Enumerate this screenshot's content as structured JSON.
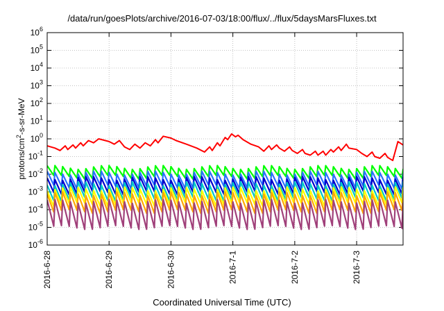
{
  "chart_data": {
    "type": "line",
    "title": "/data/run/goesPlots/archive/2016-07-03/18:00/flux/../flux/5daysMarsFluxes.txt",
    "xlabel": "Coordinated Universal Time (UTC)",
    "ylabel_parts": [
      "protons/cm",
      "2",
      "-s-sr-MeV"
    ],
    "y_scale": "log",
    "ylim": [
      1e-06,
      1000000.0
    ],
    "y_ticks": [
      {
        "base": "10",
        "exp": "6"
      },
      {
        "base": "10",
        "exp": "5"
      },
      {
        "base": "10",
        "exp": "4"
      },
      {
        "base": "10",
        "exp": "3"
      },
      {
        "base": "10",
        "exp": "2"
      },
      {
        "base": "10",
        "exp": "1"
      },
      {
        "base": "10",
        "exp": "0"
      },
      {
        "base": "10",
        "exp": "-1"
      },
      {
        "base": "10",
        "exp": "-2"
      },
      {
        "base": "10",
        "exp": "-3"
      },
      {
        "base": "10",
        "exp": "-4"
      },
      {
        "base": "10",
        "exp": "-5"
      },
      {
        "base": "10",
        "exp": "-6"
      }
    ],
    "x_ticks": [
      "2016-6-28",
      "2016-6-29",
      "2016-6-30",
      "2016-7-1",
      "2016-7-2",
      "2016-7-3"
    ],
    "xlim": [
      "2016-06-28",
      "2016-07-03 18:00"
    ],
    "grid": true,
    "series": [
      {
        "color": "#ff0000",
        "points": [
          [
            "2016-06-28 00:00",
            0.4
          ],
          [
            "2016-06-28 03:00",
            0.3
          ],
          [
            "2016-06-28 05:00",
            0.22
          ],
          [
            "2016-06-28 07:00",
            0.4
          ],
          [
            "2016-06-28 08:00",
            0.25
          ],
          [
            "2016-06-28 10:00",
            0.45
          ],
          [
            "2016-06-28 11:00",
            0.3
          ],
          [
            "2016-06-28 13:00",
            0.6
          ],
          [
            "2016-06-28 14:00",
            0.4
          ],
          [
            "2016-06-28 16:00",
            0.8
          ],
          [
            "2016-06-28 18:00",
            0.6
          ],
          [
            "2016-06-28 20:00",
            1.0
          ],
          [
            "2016-06-29 00:00",
            0.7
          ],
          [
            "2016-06-29 02:00",
            0.5
          ],
          [
            "2016-06-29 04:00",
            0.8
          ],
          [
            "2016-06-29 06:00",
            0.35
          ],
          [
            "2016-06-29 08:00",
            0.25
          ],
          [
            "2016-06-29 10:00",
            0.5
          ],
          [
            "2016-06-29 12:00",
            0.3
          ],
          [
            "2016-06-29 14:00",
            0.6
          ],
          [
            "2016-06-29 16:00",
            0.4
          ],
          [
            "2016-06-29 18:00",
            0.9
          ],
          [
            "2016-06-29 19:00",
            0.6
          ],
          [
            "2016-06-29 21:00",
            1.4
          ],
          [
            "2016-06-30 00:00",
            1.1
          ],
          [
            "2016-06-30 02:00",
            0.8
          ],
          [
            "2016-06-30 06:00",
            0.5
          ],
          [
            "2016-06-30 10:00",
            0.3
          ],
          [
            "2016-06-30 13:00",
            0.18
          ],
          [
            "2016-06-30 15:00",
            0.35
          ],
          [
            "2016-06-30 16:00",
            0.22
          ],
          [
            "2016-06-30 18:00",
            0.6
          ],
          [
            "2016-06-30 19:00",
            0.4
          ],
          [
            "2016-06-30 21:00",
            1.2
          ],
          [
            "2016-06-30 22:00",
            0.9
          ],
          [
            "2016-06-30 23:30",
            1.9
          ],
          [
            "2016-07-01 01:00",
            1.3
          ],
          [
            "2016-07-01 02:00",
            1.6
          ],
          [
            "2016-07-01 04:00",
            0.9
          ],
          [
            "2016-07-01 07:00",
            0.5
          ],
          [
            "2016-07-01 10:00",
            0.35
          ],
          [
            "2016-07-01 12:00",
            0.2
          ],
          [
            "2016-07-01 14:00",
            0.4
          ],
          [
            "2016-07-01 15:00",
            0.25
          ],
          [
            "2016-07-01 17:00",
            0.45
          ],
          [
            "2016-07-01 18:00",
            0.3
          ],
          [
            "2016-07-01 20:00",
            0.2
          ],
          [
            "2016-07-01 22:00",
            0.35
          ],
          [
            "2016-07-01 23:00",
            0.22
          ],
          [
            "2016-07-02 01:00",
            0.15
          ],
          [
            "2016-07-02 03:00",
            0.25
          ],
          [
            "2016-07-02 04:00",
            0.15
          ],
          [
            "2016-07-02 06:00",
            0.12
          ],
          [
            "2016-07-02 08:00",
            0.2
          ],
          [
            "2016-07-02 09:00",
            0.12
          ],
          [
            "2016-07-02 11:00",
            0.2
          ],
          [
            "2016-07-02 12:00",
            0.12
          ],
          [
            "2016-07-02 14:00",
            0.25
          ],
          [
            "2016-07-02 15:00",
            0.18
          ],
          [
            "2016-07-02 17:00",
            0.35
          ],
          [
            "2016-07-02 18:00",
            0.22
          ],
          [
            "2016-07-02 20:00",
            0.5
          ],
          [
            "2016-07-02 21:00",
            0.3
          ],
          [
            "2016-07-03 00:00",
            0.25
          ],
          [
            "2016-07-03 02:00",
            0.15
          ],
          [
            "2016-07-03 04:00",
            0.1
          ],
          [
            "2016-07-03 06:00",
            0.18
          ],
          [
            "2016-07-03 07:00",
            0.1
          ],
          [
            "2016-07-03 09:00",
            0.08
          ],
          [
            "2016-07-03 11:00",
            0.15
          ],
          [
            "2016-07-03 12:00",
            0.09
          ],
          [
            "2016-07-03 14:00",
            0.06
          ],
          [
            "2016-07-03 15:00",
            0.2
          ],
          [
            "2016-07-03 16:00",
            0.7
          ],
          [
            "2016-07-03 18:00",
            0.45
          ]
        ]
      },
      {
        "color": "#00ff00",
        "pattern": {
          "hi": 0.025,
          "lo": 0.007
        }
      },
      {
        "color": "#2a72ff",
        "pattern": {
          "hi": 0.012,
          "lo": 0.002
        }
      },
      {
        "color": "#0000cc",
        "pattern": {
          "hi": 0.006,
          "lo": 0.0009
        }
      },
      {
        "color": "#00c8c8",
        "pattern": {
          "hi": 0.003,
          "lo": 0.0004
        }
      },
      {
        "color": "#ffff00",
        "pattern": {
          "hi": 0.0015,
          "lo": 0.0002
        }
      },
      {
        "color": "#ffa500",
        "pattern": {
          "hi": 0.0008,
          "lo": 8e-05
        }
      },
      {
        "color": "#a0407a",
        "pattern": {
          "hi": 0.0003,
          "lo": 1e-05
        }
      }
    ]
  }
}
